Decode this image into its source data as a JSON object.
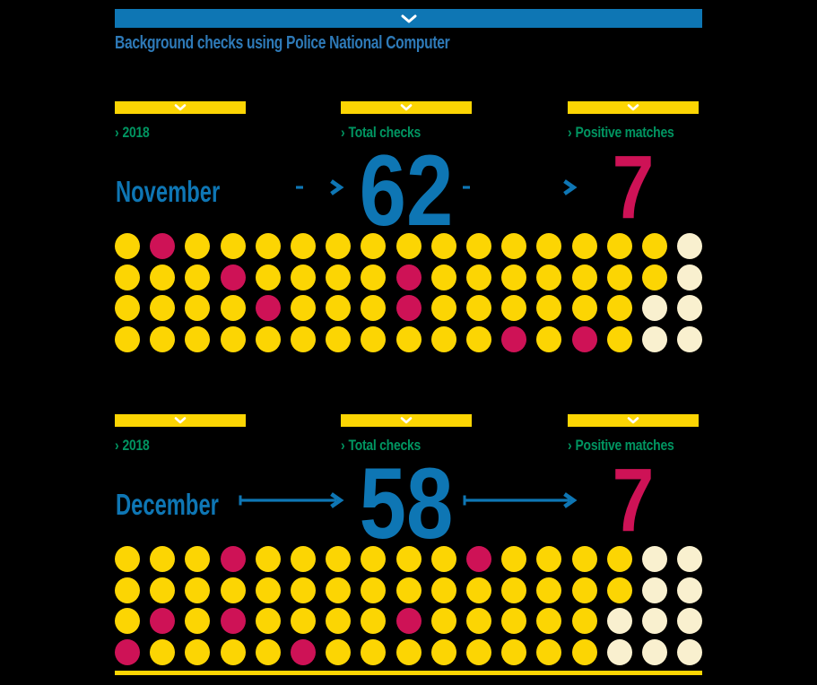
{
  "title": "Background checks using Police National Computer",
  "colors": {
    "blue": "#0E76B4",
    "title_blue": "#2E7AB8",
    "yellow": "#FCD503",
    "green": "#019561",
    "crimson": "#CE1256",
    "cream": "#F9F0CF",
    "white": "#FFFFFF",
    "background": "#000000"
  },
  "icons": {
    "chevron_right": "›",
    "chevron_down": "chevron-down"
  },
  "sections": [
    {
      "month": "November",
      "year_label": "2018",
      "total_label": "Total checks",
      "matches_label": "Positive matches",
      "total_value": "62",
      "matches_value": "7",
      "grid": [
        "YRYYYYYYYYYYYYYYC",
        "YYYRYYYYRYYYYYYYC",
        "YYYYRYYYRYYYYYYCC",
        "YYYYYYYYYYYRYRYCC"
      ]
    },
    {
      "month": "December",
      "year_label": "2018",
      "total_label": "Total checks",
      "matches_label": "Positive matches",
      "total_value": "58",
      "matches_value": "7",
      "grid": [
        "YYYRYYYYYYRYYYYCC",
        "YYYYYYYYYYYYYYYCC",
        "YRYRYYYYRYYYYYCCC",
        "RYYYYRYYYYYYYYCCC"
      ]
    }
  ],
  "chart_data": {
    "type": "pictogram",
    "title": "Background checks using Police National Computer",
    "year": "2018",
    "categories": [
      "November",
      "December"
    ],
    "series": [
      {
        "name": "Total checks",
        "values": [
          62,
          58
        ]
      },
      {
        "name": "Positive matches",
        "values": [
          7,
          7
        ]
      }
    ],
    "grid_rows": 4,
    "grid_columns": 17,
    "dot_meaning": {
      "Y": "yellow dot (check)",
      "R": "crimson dot (positive match)",
      "C": "cream dot (empty slot)"
    }
  }
}
